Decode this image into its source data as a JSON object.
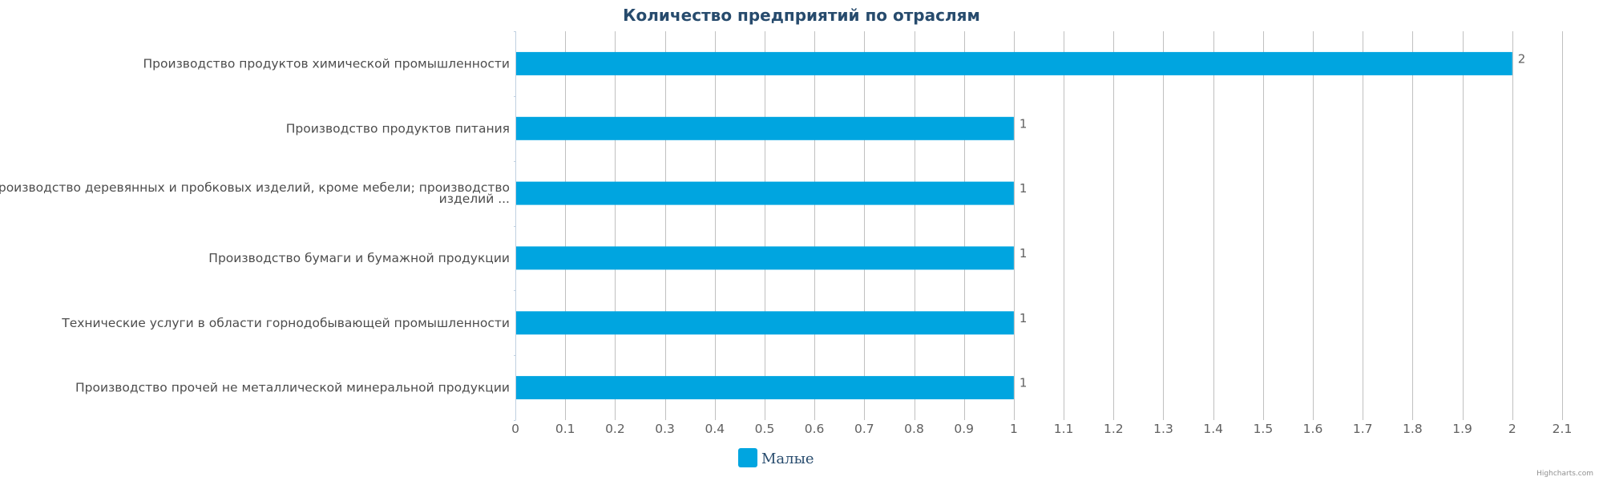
{
  "chart_data": {
    "type": "bar",
    "orientation": "horizontal",
    "title": "Количество предприятий по отраслям",
    "categories": [
      "Производство продуктов химической промышленности",
      "Производство продуктов питания",
      [
        "Производство деревянных и пробковых изделий, кроме мебели; производство",
        "изделий ..."
      ],
      "Производство бумаги и бумажной продукции",
      "Технические услуги в области горнодобывающей промышленности",
      "Производство прочей не металлической минеральной продукции"
    ],
    "series": [
      {
        "name": "Малые",
        "color": "#00a5e0",
        "values": [
          2,
          1,
          1,
          1,
          1,
          1
        ]
      }
    ],
    "x_ticks": [
      "0",
      "0.1",
      "0.2",
      "0.3",
      "0.4",
      "0.5",
      "0.6",
      "0.7",
      "0.8",
      "0.9",
      "1",
      "1.1",
      "1.2",
      "1.3",
      "1.4",
      "1.5",
      "1.6",
      "1.7",
      "1.8",
      "1.9",
      "2",
      "2.1"
    ],
    "xlim": [
      0,
      2.1
    ],
    "grid": true,
    "legend_position": "bottom-center",
    "credits": "Highcharts.com"
  },
  "colors": {
    "title": "#274b6d",
    "category_label": "#4d4d4d",
    "tick_label": "#606060",
    "data_label": "#606060",
    "legend_text": "#274b6d",
    "grid": "#c0c0c0",
    "axis": "#c0d0e0",
    "credits": "#909090"
  }
}
